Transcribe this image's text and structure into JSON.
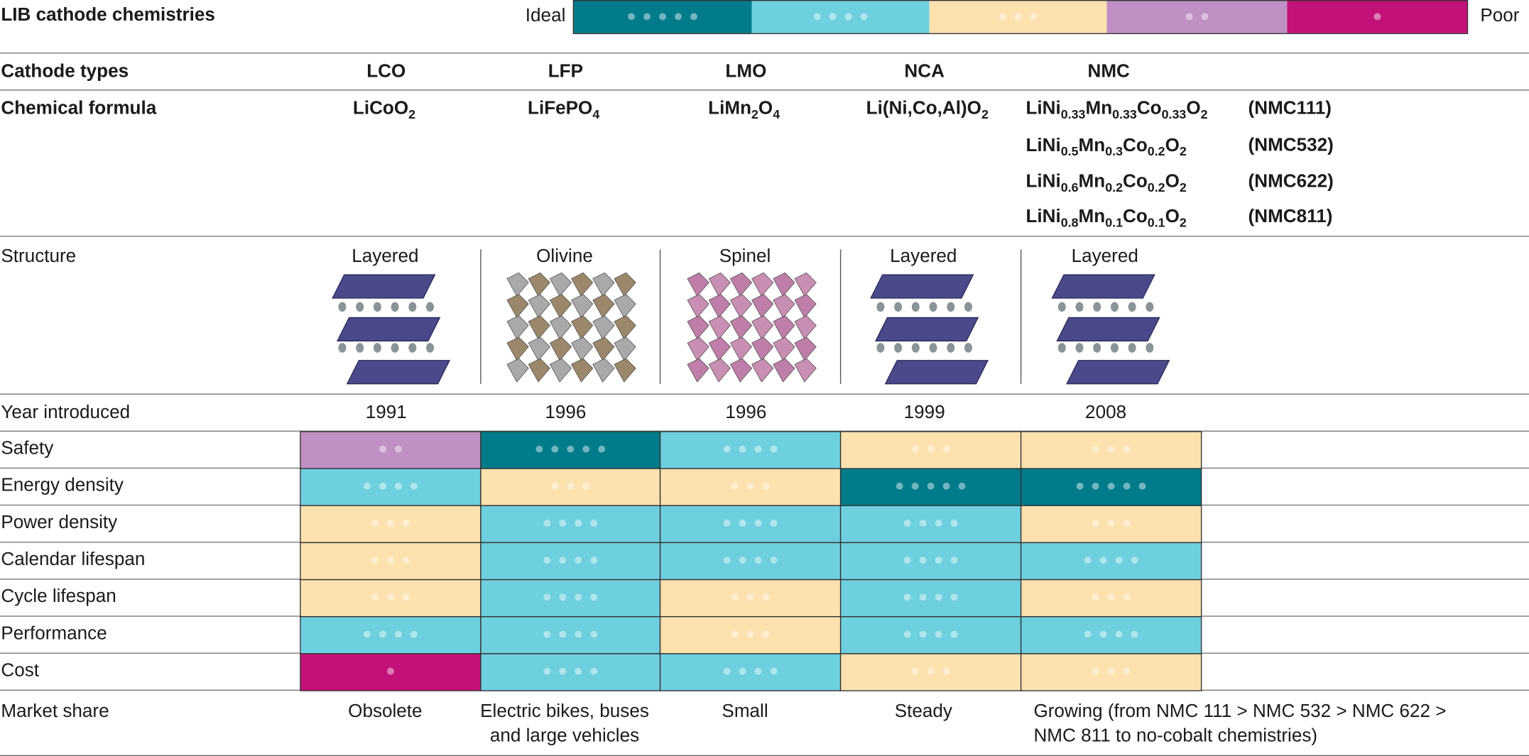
{
  "title": "LIB cathode chemistries",
  "legend": {
    "ideal_label": "Ideal",
    "poor_label": "Poor",
    "scale": [
      5,
      4,
      3,
      2,
      1
    ],
    "colors": [
      "#007b8a",
      "#6ecfdf",
      "#fde2b0",
      "#c08fc3",
      "#c3117a"
    ]
  },
  "cathode_types": {
    "header": "Cathode types",
    "names": [
      "LCO",
      "LFP",
      "LMO",
      "NCA",
      "NMC"
    ]
  },
  "chemical_formula": {
    "header": "Chemical formula",
    "formulas": [
      [
        "LiCoO",
        "2"
      ],
      [
        "LiFePO",
        "4"
      ],
      [
        "LiMn",
        "2",
        "O",
        "4"
      ],
      [
        "Li(Ni,Co,Al)O",
        "2"
      ]
    ],
    "nmc_variants": [
      {
        "formula": [
          "LiNi",
          "0.33",
          "Mn",
          "0.33",
          "Co",
          "0.33",
          "O",
          "2"
        ],
        "code": "(NMC111)"
      },
      {
        "formula": [
          "LiNi",
          "0.5",
          "Mn",
          "0.3",
          "Co",
          "0.2",
          "O",
          "2"
        ],
        "code": "(NMC532)"
      },
      {
        "formula": [
          "LiNi",
          "0.6",
          "Mn",
          "0.2",
          "Co",
          "0.2",
          "O",
          "2"
        ],
        "code": "(NMC622)"
      },
      {
        "formula": [
          "LiNi",
          "0.8",
          "Mn",
          "0.1",
          "Co",
          "0.1",
          "O",
          "2"
        ],
        "code": "(NMC811)"
      }
    ]
  },
  "structure": {
    "header": "Structure",
    "labels": [
      "Layered",
      "Olivine",
      "Spinel",
      "Layered",
      "Layered"
    ]
  },
  "year_introduced": {
    "header": "Year introduced",
    "values": [
      1991,
      1996,
      1996,
      1999,
      2008
    ]
  },
  "ratings": [
    {
      "label": "Safety",
      "values": [
        2,
        5,
        4,
        3,
        3
      ]
    },
    {
      "label": "Energy density",
      "values": [
        4,
        3,
        3,
        5,
        5
      ]
    },
    {
      "label": "Power density",
      "values": [
        3,
        4,
        4,
        4,
        3
      ]
    },
    {
      "label": "Calendar lifespan",
      "values": [
        3,
        4,
        4,
        4,
        4
      ]
    },
    {
      "label": "Cycle lifespan",
      "values": [
        3,
        4,
        3,
        4,
        3
      ]
    },
    {
      "label": "Performance",
      "values": [
        4,
        4,
        3,
        4,
        4
      ]
    },
    {
      "label": "Cost",
      "values": [
        1,
        4,
        4,
        3,
        3
      ]
    }
  ],
  "market_share": {
    "header": "Market share",
    "values": [
      "Obsolete",
      "Electric bikes, buses and large vehicles",
      "Small",
      "Steady",
      "Growing (from NMC 111 > NMC 532 > NMC 622 > NMC 811 to no-cobalt chemistries)"
    ]
  }
}
